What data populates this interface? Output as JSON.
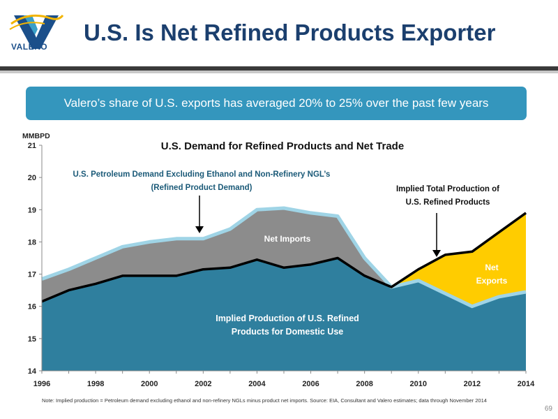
{
  "header": {
    "logo_text": "VALERO",
    "title": "U.S. Is Net Refined Products Exporter"
  },
  "banner": {
    "text": "Valero’s share of U.S. exports has averaged 20% to 25% over the past few years"
  },
  "colors": {
    "title": "#1b3f6e",
    "banner": "#3496bd",
    "domestic_production": "#2f7f9e",
    "net_imports": "#8c8c8c",
    "net_exports": "#ffcc00",
    "demand_line": "#9fd4e6",
    "production_line": "#000000"
  },
  "chart_data": {
    "type": "area",
    "title": "U.S. Demand for Refined Products and Net Trade",
    "ylabel": "MMBPD",
    "xlabel": "",
    "ylim": [
      14,
      21
    ],
    "xlim": [
      1996,
      2014
    ],
    "xticks": [
      "1996",
      "1998",
      "2000",
      "2002",
      "2004",
      "2006",
      "2008",
      "2010",
      "2012",
      "2014"
    ],
    "yticks": [
      "14",
      "15",
      "16",
      "17",
      "18",
      "19",
      "20",
      "21"
    ],
    "x": [
      1996,
      1997,
      1998,
      1999,
      2000,
      2001,
      2002,
      2003,
      2004,
      2005,
      2006,
      2007,
      2008,
      2009,
      2010,
      2011,
      2012,
      2013,
      2014
    ],
    "series": [
      {
        "name": "U.S. Petroleum Demand Excluding Ethanol and Non-Refinery NGL’s (Refined Product Demand)",
        "values": [
          16.85,
          17.15,
          17.5,
          17.85,
          18.0,
          18.1,
          18.1,
          18.4,
          19.0,
          19.05,
          18.9,
          18.8,
          17.5,
          16.6,
          16.8,
          16.4,
          16.0,
          16.3,
          16.45
        ]
      },
      {
        "name": "Implied Total Production of U.S. Refined Products",
        "values": [
          16.15,
          16.5,
          16.7,
          16.95,
          16.95,
          16.95,
          17.15,
          17.2,
          17.45,
          17.2,
          17.3,
          17.5,
          16.95,
          16.6,
          17.15,
          17.6,
          17.7,
          18.3,
          18.9
        ]
      }
    ],
    "annotations": {
      "demand_label_line1": "U.S. Petroleum Demand Excluding Ethanol and Non-Refinery NGL’s",
      "demand_label_line2": "(Refined Product Demand)",
      "production_label_line1": "Implied Total Production of",
      "production_label_line2": "U.S. Refined Products",
      "net_imports": "Net Imports",
      "net_exports_line1": "Net",
      "net_exports_line2": "Exports",
      "domestic_line1": "Implied Production of U.S. Refined",
      "domestic_line2": "Products for Domestic Use"
    },
    "grid": false,
    "legend": "none"
  },
  "footer": {
    "note": "Note: Implied production = Petroleum demand excluding ethanol and non-refinery NGLs minus product net imports. Source: EIA, Consultant and Valero estimates; data through November 2014",
    "page_number": "69"
  }
}
